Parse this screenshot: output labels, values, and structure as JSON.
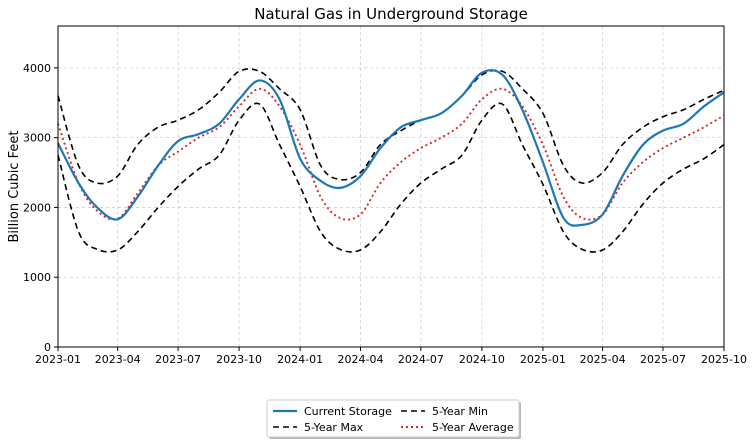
{
  "chart_data": {
    "type": "line",
    "title": "Natural Gas in Underground Storage",
    "xlabel": "",
    "ylabel": "Billion Cubic Feet",
    "xlim": [
      "2023-01-01",
      "2025-10-01"
    ],
    "ylim": [
      0,
      4600
    ],
    "grid": true,
    "legend_position": "bottom-center",
    "x_ticks": [
      "2023-01",
      "2023-04",
      "2023-07",
      "2023-10",
      "2024-01",
      "2024-04",
      "2024-07",
      "2024-10",
      "2025-01",
      "2025-04",
      "2025-07",
      "2025-10"
    ],
    "y_ticks": [
      0,
      1000,
      2000,
      3000,
      4000
    ],
    "x": [
      "2023-01-01",
      "2023-02-01",
      "2023-03-01",
      "2023-04-01",
      "2023-05-01",
      "2023-06-01",
      "2023-07-01",
      "2023-08-01",
      "2023-09-01",
      "2023-10-01",
      "2023-11-01",
      "2023-12-01",
      "2024-01-01",
      "2024-02-01",
      "2024-03-01",
      "2024-04-01",
      "2024-05-01",
      "2024-06-01",
      "2024-07-01",
      "2024-08-01",
      "2024-09-01",
      "2024-10-01",
      "2024-11-01",
      "2024-12-01",
      "2025-01-01",
      "2025-02-01",
      "2025-03-01",
      "2025-04-01",
      "2025-05-01",
      "2025-06-01",
      "2025-07-01",
      "2025-08-01",
      "2025-09-01",
      "2025-10-01"
    ],
    "series": [
      {
        "name": "Current Storage",
        "color": "#1f77b4",
        "style": "solid",
        "values": [
          2920,
          2350,
          2000,
          1830,
          2150,
          2600,
          2950,
          3050,
          3200,
          3550,
          3820,
          3550,
          2700,
          2380,
          2280,
          2450,
          2850,
          3150,
          3250,
          3350,
          3600,
          3930,
          3900,
          3400,
          2650,
          1850,
          1750,
          1900,
          2450,
          2900,
          3100,
          3200,
          3450,
          3650
        ]
      },
      {
        "name": "5-Year Max",
        "color": "#000000",
        "style": "dashed",
        "values": [
          3600,
          2600,
          2350,
          2450,
          2900,
          3150,
          3250,
          3400,
          3650,
          3950,
          3950,
          3700,
          3400,
          2600,
          2400,
          2500,
          2900,
          3100,
          3250,
          3350,
          3600,
          3900,
          3950,
          3700,
          3350,
          2600,
          2350,
          2500,
          2900,
          3150,
          3300,
          3400,
          3550,
          3680
        ]
      },
      {
        "name": "5-Year Min",
        "color": "#000000",
        "style": "dashed",
        "values": [
          2750,
          1650,
          1400,
          1390,
          1650,
          2000,
          2300,
          2550,
          2750,
          3250,
          3480,
          2900,
          2300,
          1650,
          1400,
          1390,
          1650,
          2050,
          2350,
          2550,
          2750,
          3250,
          3480,
          2900,
          2330,
          1650,
          1400,
          1390,
          1650,
          2050,
          2350,
          2550,
          2700,
          2900
        ]
      },
      {
        "name": "5-Year Average",
        "color": "#d62728",
        "style": "dotted",
        "values": [
          3200,
          2350,
          1950,
          1840,
          2200,
          2600,
          2800,
          3000,
          3150,
          3450,
          3700,
          3450,
          2900,
          2150,
          1850,
          1900,
          2350,
          2650,
          2850,
          3000,
          3200,
          3550,
          3700,
          3450,
          2900,
          2150,
          1850,
          1900,
          2350,
          2650,
          2850,
          3000,
          3150,
          3320
        ]
      }
    ]
  }
}
